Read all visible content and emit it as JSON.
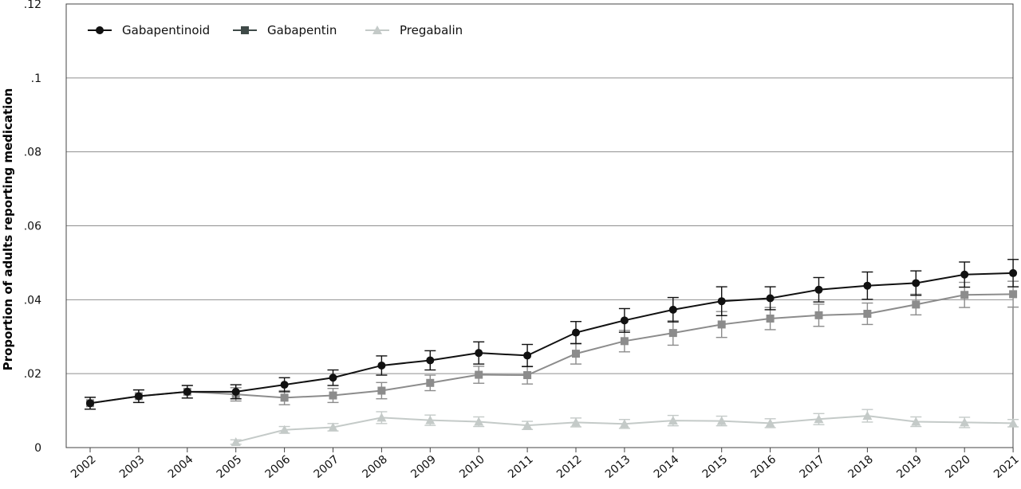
{
  "chart_data": {
    "type": "line",
    "title": "",
    "xlabel": "",
    "ylabel": "Proportion of adults reporting medication",
    "x": [
      "2002",
      "2003",
      "2004",
      "2005",
      "2006",
      "2007",
      "2008",
      "2009",
      "2010",
      "2011",
      "2012",
      "2013",
      "2014",
      "2015",
      "2016",
      "2017",
      "2018",
      "2019",
      "2020",
      "2021"
    ],
    "ylim": [
      0,
      0.12
    ],
    "yticks": [
      0,
      0.02,
      0.04,
      0.06,
      0.08,
      0.1,
      0.12
    ],
    "ytick_labels": [
      "0",
      ".02",
      ".04",
      ".06",
      ".08",
      ".1",
      ".12"
    ],
    "grid": "horizontal",
    "legend_position": "top-left",
    "series": [
      {
        "name": "Gabapentinoid",
        "color": "#111111",
        "marker": "circle",
        "values": [
          0.012,
          0.0139,
          0.0151,
          0.0151,
          0.017,
          0.0189,
          0.0222,
          0.0236,
          0.0256,
          0.0249,
          0.0311,
          0.0344,
          0.0373,
          0.0396,
          0.0404,
          0.0427,
          0.0438,
          0.0445,
          0.0468,
          0.0472
        ],
        "errors": [
          0.0016,
          0.0017,
          0.0017,
          0.0019,
          0.0019,
          0.0021,
          0.0026,
          0.0026,
          0.003,
          0.003,
          0.003,
          0.0032,
          0.0033,
          0.0039,
          0.0031,
          0.0033,
          0.0037,
          0.0033,
          0.0034,
          0.0037
        ]
      },
      {
        "name": "Gabapentin",
        "color": "#8c8c8c",
        "legend_color": "#3f4a48",
        "marker": "square",
        "values": [
          0.012,
          0.0139,
          0.0151,
          0.0144,
          0.0135,
          0.0141,
          0.0154,
          0.0175,
          0.0197,
          0.0196,
          0.0254,
          0.0288,
          0.031,
          0.0333,
          0.0349,
          0.0358,
          0.0362,
          0.0387,
          0.0413,
          0.0415
        ],
        "errors": [
          0.0016,
          0.0017,
          0.0017,
          0.0018,
          0.0019,
          0.0019,
          0.0022,
          0.0021,
          0.0023,
          0.0024,
          0.0028,
          0.0029,
          0.0033,
          0.0035,
          0.003,
          0.003,
          0.0029,
          0.0028,
          0.0034,
          0.0035
        ]
      },
      {
        "name": "Pregabalin",
        "color": "#c4cac8",
        "marker": "triangle",
        "values": [
          null,
          null,
          null,
          0.0015,
          0.0048,
          0.0055,
          0.0081,
          0.0074,
          0.007,
          0.006,
          0.0068,
          0.0064,
          0.0073,
          0.0072,
          0.0066,
          0.0077,
          0.0086,
          0.007,
          0.0068,
          0.0066
        ],
        "errors": [
          null,
          null,
          null,
          0.0006,
          0.0009,
          0.001,
          0.0016,
          0.0014,
          0.0013,
          0.0011,
          0.0012,
          0.0012,
          0.0014,
          0.0013,
          0.0012,
          0.0015,
          0.0017,
          0.0013,
          0.0014,
          0.001
        ]
      }
    ]
  }
}
